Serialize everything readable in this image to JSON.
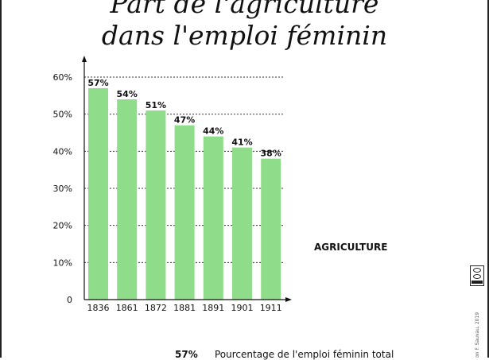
{
  "title": {
    "line1": "Part de l'agriculture",
    "line2": "dans l'emploi féminin"
  },
  "legend_label": "AGRICULTURE",
  "footnote": {
    "value": "57%",
    "description": "Pourcentage de l'emploi féminin total"
  },
  "credit": "on F. Sauvau, 2019",
  "license_icon": "cc-by-nc-sa-icon",
  "colors": {
    "bar": "#8fdc8a",
    "axis": "#111111",
    "grid": "#333333"
  },
  "chart_data": {
    "type": "bar",
    "categories": [
      "1836",
      "1861",
      "1872",
      "1881",
      "1891",
      "1901",
      "1911"
    ],
    "values": [
      57,
      54,
      51,
      47,
      44,
      41,
      38
    ],
    "value_labels": [
      "57%",
      "54%",
      "51%",
      "47%",
      "44%",
      "41%",
      "38%"
    ],
    "series": [
      {
        "name": "AGRICULTURE",
        "values": [
          57,
          54,
          51,
          47,
          44,
          41,
          38
        ]
      }
    ],
    "yticks": [
      {
        "value": 0,
        "label": "0"
      },
      {
        "value": 10,
        "label": "10%"
      },
      {
        "value": 20,
        "label": "20%"
      },
      {
        "value": 30,
        "label": "30%"
      },
      {
        "value": 40,
        "label": "40%"
      },
      {
        "value": 50,
        "label": "50%"
      },
      {
        "value": 60,
        "label": "60%"
      }
    ],
    "ylim": [
      0,
      60
    ],
    "grid": true,
    "legend_position": "right"
  }
}
